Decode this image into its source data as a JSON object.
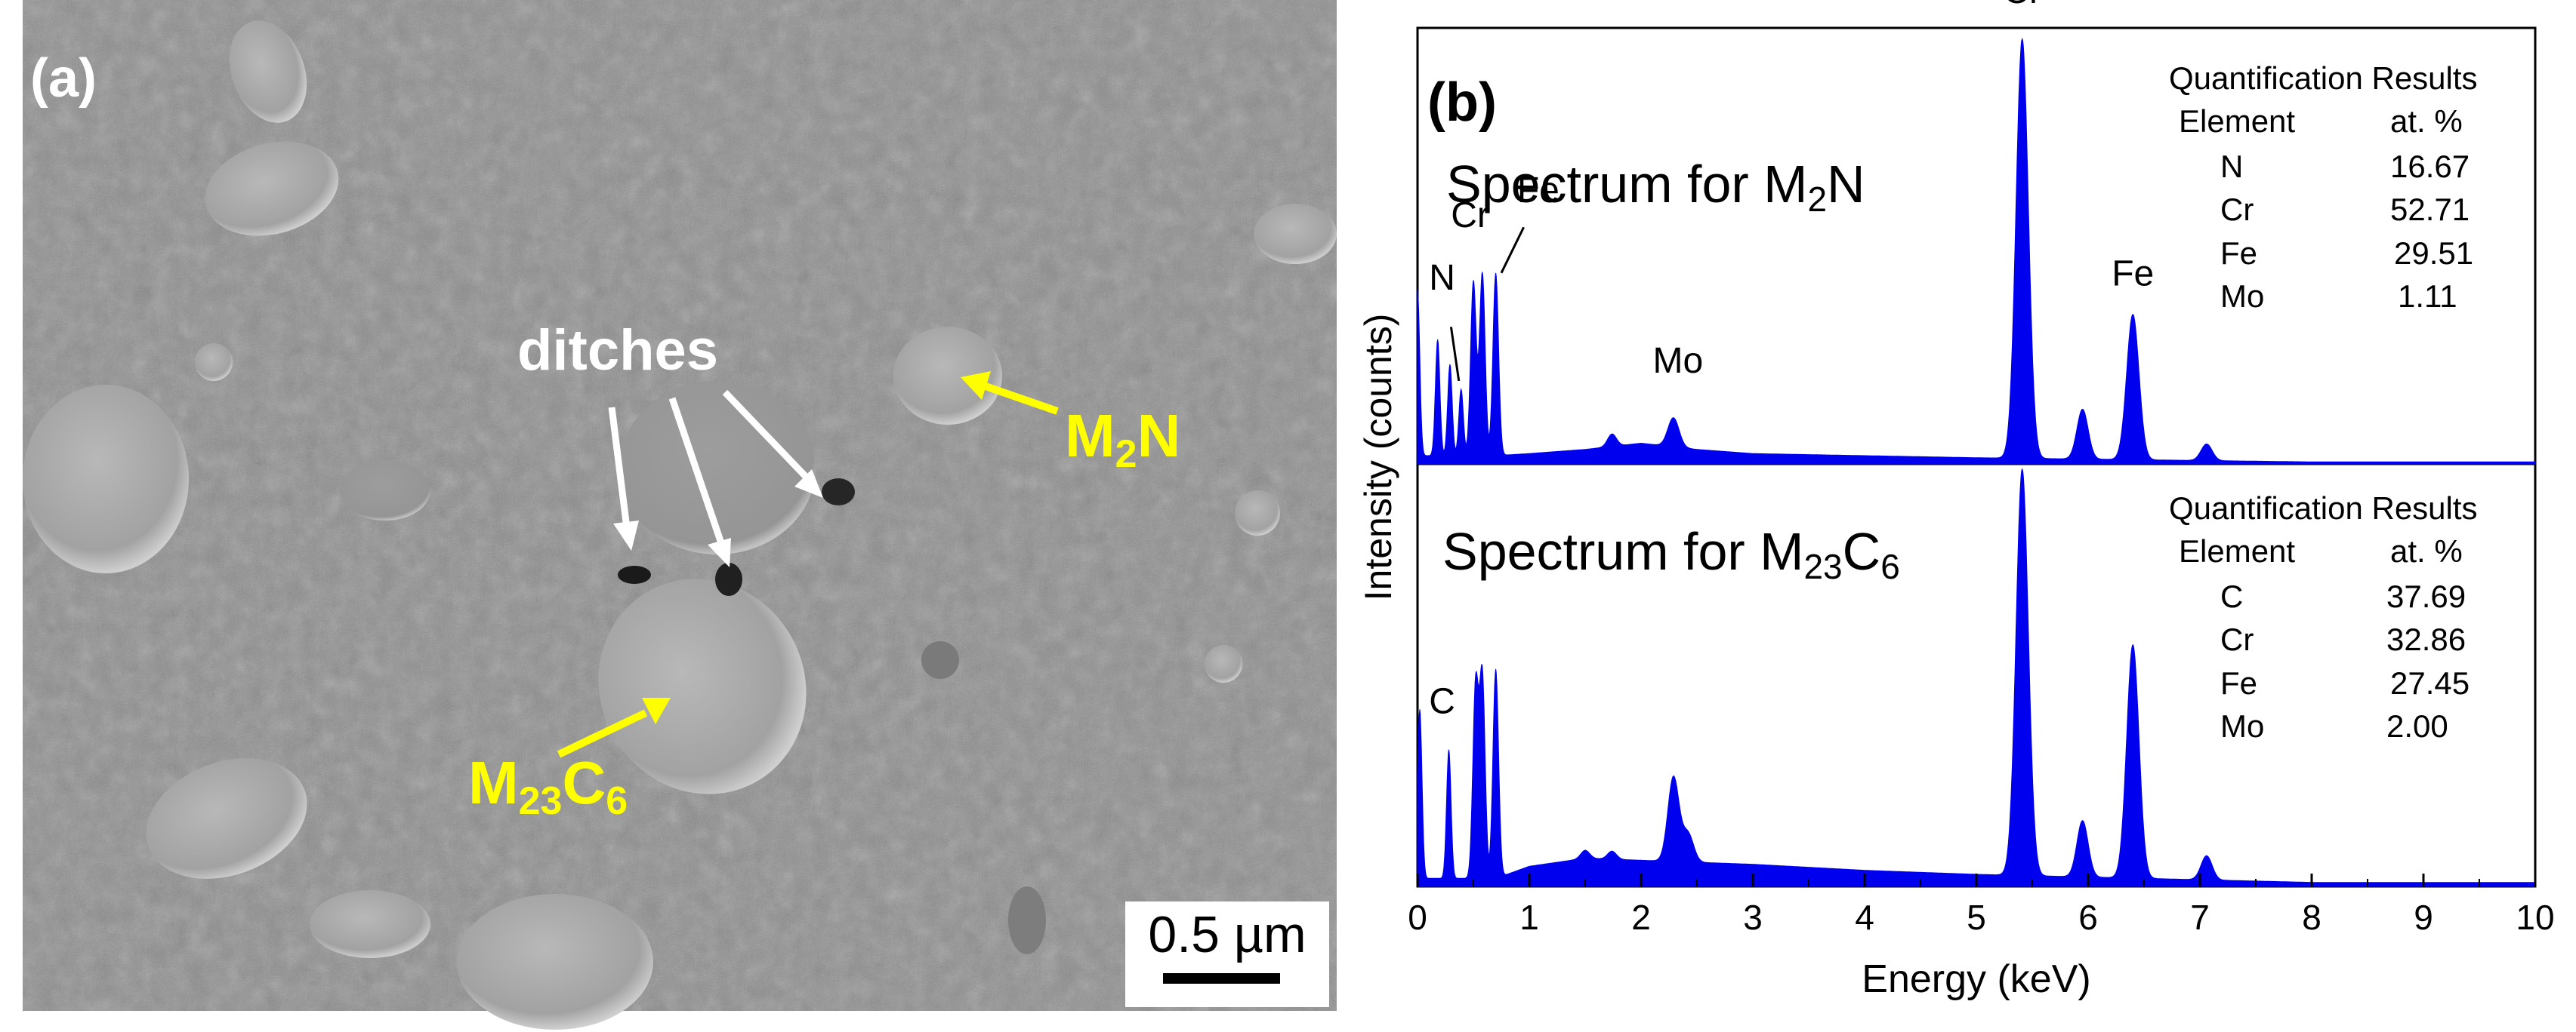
{
  "panel_a": {
    "label": "(a)",
    "annotations": {
      "ditches": "ditches",
      "m2n": {
        "base": "M",
        "sub": "2",
        "tail": "N"
      },
      "m23c6": {
        "base": "M",
        "sub1": "23",
        "mid": "C",
        "sub2": "6"
      }
    },
    "scale_bar": {
      "label": "0.5 µm"
    },
    "colors": {
      "background": "#8a8a8a",
      "highlight": "#ffff00",
      "annotation": "#ffffff"
    }
  },
  "chart_data": {
    "type": "line",
    "panel_label": "(b)",
    "xlabel": "Energy (keV)",
    "ylabel": "Intensity (counts)",
    "xlim": [
      0,
      10
    ],
    "xticks": [
      "0",
      "1",
      "2",
      "3",
      "4",
      "5",
      "6",
      "7",
      "8",
      "9",
      "10"
    ],
    "fill_color": "#0000ee",
    "series": [
      {
        "name": "M2N",
        "title": {
          "base": "Spectrum for M",
          "sub": "2",
          "tail": "N"
        },
        "ylim": [
          0,
          105
        ],
        "baseline": [
          [
            0.0,
            2
          ],
          [
            0.7,
            2
          ],
          [
            1.0,
            2.5
          ],
          [
            1.5,
            3.5
          ],
          [
            2.0,
            5
          ],
          [
            2.5,
            3.5
          ],
          [
            3.0,
            2.5
          ],
          [
            4.0,
            2
          ],
          [
            5.0,
            1.5
          ],
          [
            6.5,
            1
          ],
          [
            8.0,
            0.5
          ],
          [
            10.0,
            0.5
          ]
        ],
        "peaks": [
          {
            "e": 0.0,
            "h": 40,
            "w": 0.02
          },
          {
            "e": 0.18,
            "h": 28,
            "w": 0.02
          },
          {
            "e": 0.29,
            "h": 22,
            "w": 0.02
          },
          {
            "e": 0.39,
            "h": 16,
            "w": 0.02
          },
          {
            "e": 0.5,
            "h": 42,
            "w": 0.025
          },
          {
            "e": 0.58,
            "h": 44,
            "w": 0.025
          },
          {
            "e": 0.7,
            "h": 44,
            "w": 0.025
          },
          {
            "e": 1.74,
            "h": 3,
            "w": 0.04
          },
          {
            "e": 2.29,
            "h": 7,
            "w": 0.05
          },
          {
            "e": 5.41,
            "h": 101,
            "w": 0.055
          },
          {
            "e": 5.95,
            "h": 12,
            "w": 0.05
          },
          {
            "e": 6.4,
            "h": 35,
            "w": 0.055
          },
          {
            "e": 7.06,
            "h": 4,
            "w": 0.05
          }
        ],
        "peak_labels": [
          {
            "text": "N",
            "e": 0.22,
            "y": 42
          },
          {
            "text": "Cr",
            "e": 0.47,
            "y": 57
          },
          {
            "text": "Fe",
            "e": 1.08,
            "y": 63
          },
          {
            "text": "Mo",
            "e": 2.33,
            "y": 22
          },
          {
            "text": "Cr",
            "e": 5.41,
            "y": 111
          },
          {
            "text": "Fe",
            "e": 6.4,
            "y": 43
          }
        ],
        "quantification": {
          "header": "Quantification Results",
          "col1": "Element",
          "col2": "at. %",
          "rows": [
            [
              "N",
              "16.67"
            ],
            [
              "Cr",
              "52.71"
            ],
            [
              "Fe",
              "29.51"
            ],
            [
              "Mo",
              "1.11"
            ]
          ]
        }
      },
      {
        "name": "M23C6",
        "title": {
          "base": "Spectrum for M",
          "sub": "23",
          "mid": "C",
          "sub2": "6"
        },
        "ylim": [
          0,
          105
        ],
        "baseline": [
          [
            0.0,
            2
          ],
          [
            0.7,
            2
          ],
          [
            1.0,
            5
          ],
          [
            1.5,
            7
          ],
          [
            2.0,
            6.5
          ],
          [
            2.5,
            6
          ],
          [
            3.0,
            5.5
          ],
          [
            4.0,
            4
          ],
          [
            5.0,
            3
          ],
          [
            6.5,
            2
          ],
          [
            8.0,
            1
          ],
          [
            10.0,
            1
          ]
        ],
        "peaks": [
          {
            "e": 0.02,
            "h": 42,
            "w": 0.02
          },
          {
            "e": 0.28,
            "h": 32,
            "w": 0.02
          },
          {
            "e": 0.52,
            "h": 48,
            "w": 0.025
          },
          {
            "e": 0.58,
            "h": 50,
            "w": 0.025
          },
          {
            "e": 0.7,
            "h": 52,
            "w": 0.025
          },
          {
            "e": 1.5,
            "h": 2,
            "w": 0.04
          },
          {
            "e": 1.74,
            "h": 2,
            "w": 0.04
          },
          {
            "e": 2.29,
            "h": 21,
            "w": 0.05
          },
          {
            "e": 2.42,
            "h": 7,
            "w": 0.05
          },
          {
            "e": 5.41,
            "h": 101,
            "w": 0.055
          },
          {
            "e": 5.95,
            "h": 14,
            "w": 0.05
          },
          {
            "e": 6.4,
            "h": 58,
            "w": 0.055
          },
          {
            "e": 7.06,
            "h": 6,
            "w": 0.05
          }
        ],
        "peak_labels": [
          {
            "text": "C",
            "e": 0.22,
            "y": 43
          }
        ],
        "quantification": {
          "header": "Quantification Results",
          "col1": "Element",
          "col2": "at. %",
          "rows": [
            [
              "C",
              "37.69"
            ],
            [
              "Cr",
              "32.86"
            ],
            [
              "Fe",
              "27.45"
            ],
            [
              "Mo",
              "2.00"
            ]
          ]
        }
      }
    ]
  }
}
